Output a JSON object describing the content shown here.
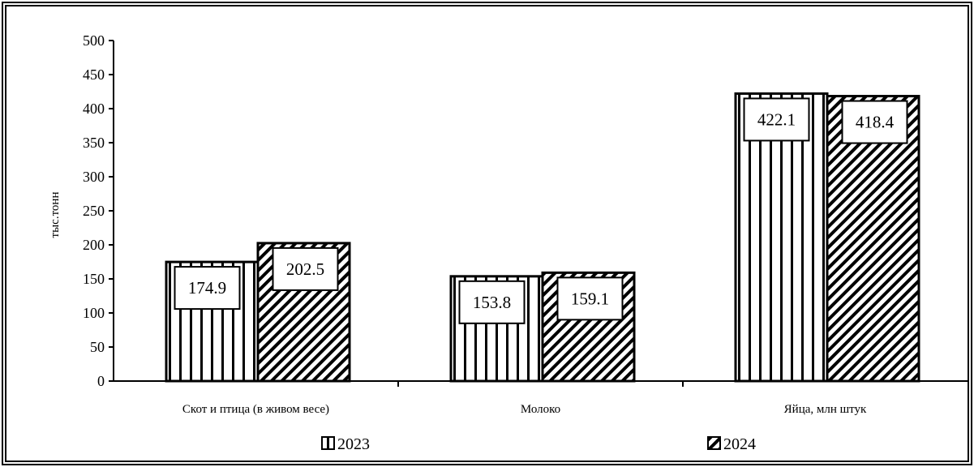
{
  "chart_data": {
    "type": "bar",
    "categories": [
      "Скот и птица (в живом весе)",
      "Молоко",
      "Яйца, млн штук"
    ],
    "series": [
      {
        "name": "2023",
        "values": [
          174.9,
          153.8,
          422.1
        ],
        "pattern": "vertical-stripes"
      },
      {
        "name": "2024",
        "values": [
          202.5,
          159.1,
          418.4
        ],
        "pattern": "diagonal-stripes"
      }
    ],
    "title": "",
    "xlabel": "",
    "ylabel": "тыс.тонн",
    "ylim": [
      0,
      500
    ],
    "yticks": [
      0,
      50,
      100,
      150,
      200,
      250,
      300,
      350,
      400,
      450,
      500
    ],
    "grid": false,
    "legend_position": "bottom",
    "colors": {
      "bar_fill": "#ffffff",
      "bar_stroke": "#000000",
      "frame": "#000000"
    }
  }
}
